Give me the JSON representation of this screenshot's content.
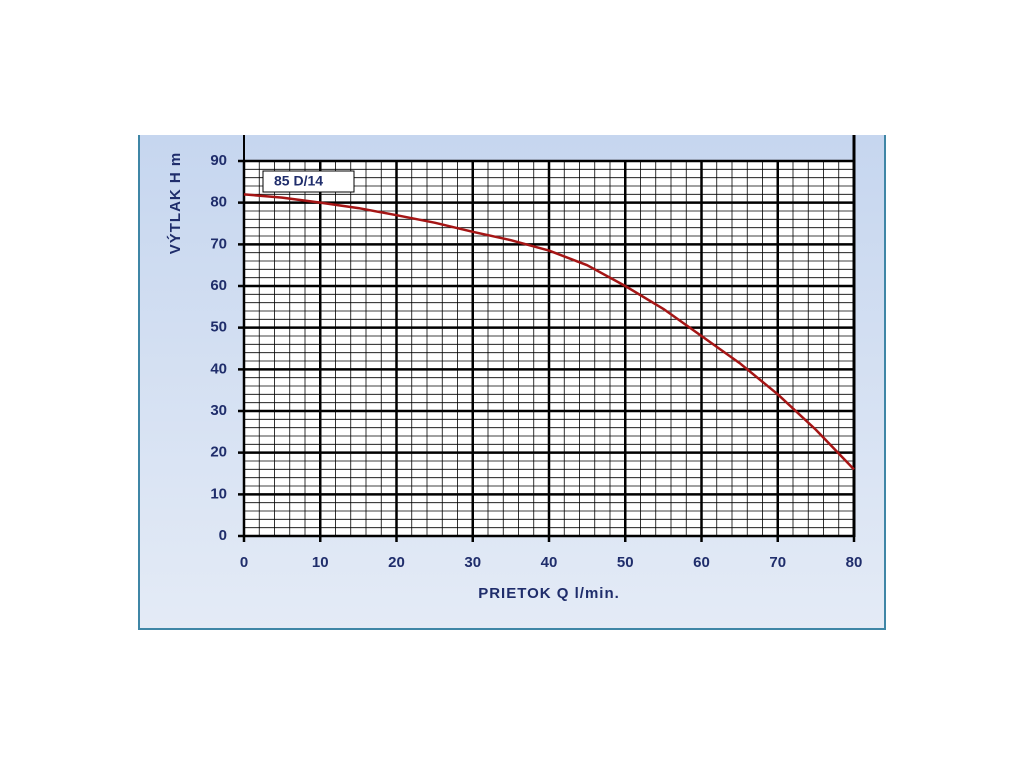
{
  "chart_data": {
    "type": "line",
    "xlabel": "PRIETOK  Q  l/min.",
    "ylabel": "VÝTLAK  H  m",
    "x": [
      0,
      5,
      10,
      15,
      20,
      25,
      30,
      35,
      40,
      45,
      50,
      55,
      60,
      65,
      70,
      75,
      80
    ],
    "series": [
      {
        "name": "85 D/14",
        "color": "#a51515",
        "values": [
          82,
          81.2,
          80,
          78.7,
          77,
          75.2,
          73,
          71,
          68.5,
          65,
          60,
          54.5,
          48,
          41.5,
          34,
          25.5,
          16
        ]
      }
    ],
    "xlim": [
      0,
      80
    ],
    "ylim": [
      0,
      90
    ],
    "xticks": [
      0,
      10,
      20,
      30,
      40,
      50,
      60,
      70,
      80
    ],
    "yticks": [
      0,
      10,
      20,
      30,
      40,
      50,
      60,
      70,
      80,
      90
    ],
    "grid": true,
    "minor_grid": true
  }
}
